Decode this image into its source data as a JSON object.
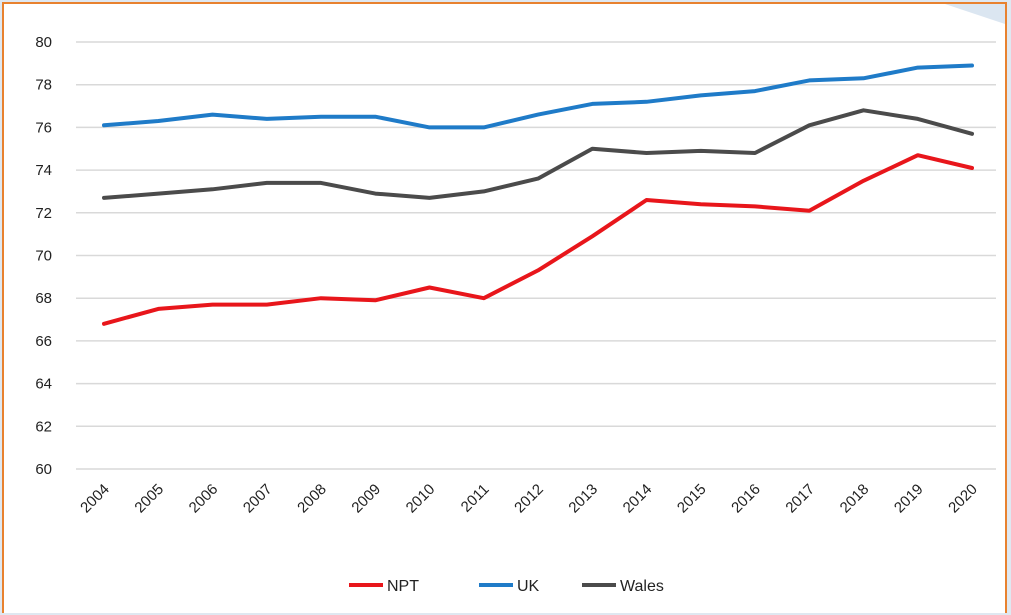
{
  "chart_data": {
    "type": "line",
    "title": "",
    "xlabel": "",
    "ylabel": "",
    "ylim": [
      60,
      80
    ],
    "y_ticks": [
      60,
      62,
      64,
      66,
      68,
      70,
      72,
      74,
      76,
      78,
      80
    ],
    "grid": true,
    "legend_position": "bottom",
    "categories": [
      "2004",
      "2005",
      "2006",
      "2007",
      "2008",
      "2009",
      "2010",
      "2011",
      "2012",
      "2013",
      "2014",
      "2015",
      "2016",
      "2017",
      "2018",
      "2019",
      "2020"
    ],
    "series": [
      {
        "name": "NPT",
        "color": "#e8161b",
        "values": [
          66.8,
          67.5,
          67.7,
          67.7,
          68.0,
          67.9,
          68.5,
          68.0,
          69.3,
          70.9,
          72.6,
          72.4,
          72.3,
          72.1,
          73.5,
          74.7,
          74.1
        ]
      },
      {
        "name": "UK",
        "color": "#1f7bc8",
        "values": [
          76.1,
          76.3,
          76.6,
          76.4,
          76.5,
          76.5,
          76.0,
          76.0,
          76.6,
          77.1,
          77.2,
          77.5,
          77.7,
          78.2,
          78.3,
          78.8,
          78.9
        ]
      },
      {
        "name": "Wales",
        "color": "#4b4b4b",
        "values": [
          72.7,
          72.9,
          73.1,
          73.4,
          73.4,
          72.9,
          72.7,
          73.0,
          73.6,
          75.0,
          74.8,
          74.9,
          74.8,
          76.1,
          76.8,
          76.4,
          75.7
        ]
      }
    ]
  }
}
